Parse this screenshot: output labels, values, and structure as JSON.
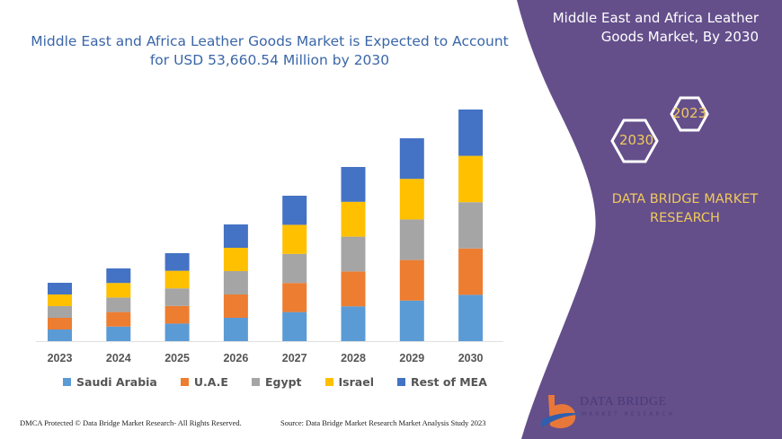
{
  "title": "Middle East and Africa Leather Goods Market is Expected to Account for USD 53,660.54 Million by 2030",
  "side_panel": {
    "title": "Middle East and Africa Leather Goods Market, By 2030",
    "hex_year_1": "2023",
    "hex_year_2": "2030",
    "brand": "DATA BRIDGE MARKET RESEARCH",
    "logo_text": "DATA BRIDGE",
    "logo_sub": "MARKET RESEARCH",
    "panel_color": "#644f8b"
  },
  "footer": {
    "left": "DMCA Protected © Data Bridge Market Research- All Rights Reserved.",
    "right": "Source: Data Bridge Market Research Market Analysis Study 2023"
  },
  "chart_data": {
    "type": "bar",
    "stacked": true,
    "title": "Middle East and Africa Leather Goods Market is Expected to Account for USD 53,660.54 Million by 2030",
    "categories": [
      "2023",
      "2024",
      "2025",
      "2026",
      "2027",
      "2028",
      "2029",
      "2030"
    ],
    "series": [
      {
        "name": "Saudi Arabia",
        "color": "#5b9bd5",
        "values": [
          2704,
          3370,
          4076,
          5408,
          6738,
          8070,
          9400,
          10732
        ]
      },
      {
        "name": "U.A.E",
        "color": "#ed7d31",
        "values": [
          2704,
          3370,
          4076,
          5408,
          6738,
          8070,
          9400,
          10732
        ]
      },
      {
        "name": "Egypt",
        "color": "#a5a5a5",
        "values": [
          2704,
          3370,
          4076,
          5408,
          6738,
          8070,
          9400,
          10732
        ]
      },
      {
        "name": "Israel",
        "color": "#ffc000",
        "values": [
          2704,
          3370,
          4076,
          5408,
          6738,
          8070,
          9400,
          10732
        ]
      },
      {
        "name": "Rest of MEA",
        "color": "#4472c4",
        "values": [
          2704,
          3370,
          4076,
          5408,
          6738,
          8070,
          9400,
          10732
        ]
      }
    ],
    "ylim": [
      0,
      53660.54
    ],
    "grid": false,
    "y_axis_visible": false,
    "legend": "bottom"
  }
}
